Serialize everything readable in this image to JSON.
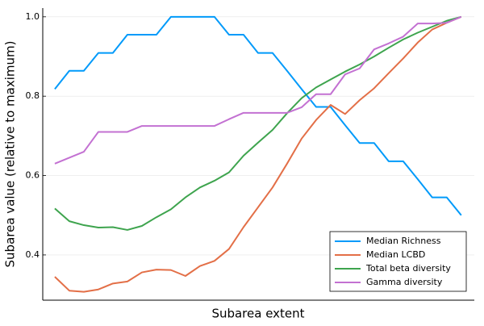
{
  "chart_data": {
    "type": "line",
    "xlabel": "Subarea extent",
    "ylabel": "Subarea value (relative to maximum)",
    "x": [
      1,
      2,
      3,
      4,
      5,
      6,
      7,
      8,
      9,
      10,
      11,
      12,
      13,
      14,
      15,
      16,
      17,
      18,
      19,
      20,
      21,
      22,
      23,
      24,
      25,
      26,
      27,
      28,
      29
    ],
    "xlim": [
      0.17,
      29.9
    ],
    "ylim": [
      0.286,
      1.022
    ],
    "yticks": [
      0.4,
      0.6,
      0.8,
      {
        "value": 1,
        "label": "1.0"
      }
    ],
    "grid": true,
    "legend": "bottom-right",
    "series": [
      {
        "name": "Median Richness",
        "color": "#009afa",
        "values": [
          0.818,
          0.864,
          0.864,
          0.909,
          0.909,
          0.955,
          0.955,
          0.955,
          1,
          1,
          1,
          1,
          0.955,
          0.955,
          0.909,
          0.909,
          0.864,
          0.818,
          0.773,
          0.773,
          0.727,
          0.682,
          0.682,
          0.636,
          0.636,
          0.591,
          0.545,
          0.545,
          0.5
        ]
      },
      {
        "name": "Median LCBD",
        "color": "#e36f47",
        "values": [
          0.345,
          0.31,
          0.307,
          0.313,
          0.328,
          0.333,
          0.356,
          0.363,
          0.362,
          0.347,
          0.372,
          0.385,
          0.415,
          0.47,
          0.52,
          0.57,
          0.63,
          0.693,
          0.74,
          0.778,
          0.755,
          0.79,
          0.82,
          0.858,
          0.895,
          0.935,
          0.968,
          0.985,
          1
        ]
      },
      {
        "name": "Total beta diversity",
        "color": "#3ea44e",
        "values": [
          0.517,
          0.485,
          0.475,
          0.469,
          0.47,
          0.463,
          0.473,
          0.495,
          0.515,
          0.545,
          0.57,
          0.587,
          0.608,
          0.65,
          0.683,
          0.715,
          0.757,
          0.795,
          0.822,
          0.842,
          0.862,
          0.88,
          0.9,
          0.922,
          0.943,
          0.96,
          0.975,
          0.99,
          1
        ]
      },
      {
        "name": "Gamma diversity",
        "color": "#c371d2",
        "values": [
          0.63,
          0.645,
          0.66,
          0.71,
          0.71,
          0.71,
          0.725,
          0.725,
          0.725,
          0.725,
          0.725,
          0.725,
          0.742,
          0.758,
          0.758,
          0.758,
          0.758,
          0.772,
          0.805,
          0.805,
          0.855,
          0.87,
          0.918,
          0.933,
          0.95,
          0.983,
          0.983,
          0.985,
          1
        ]
      }
    ]
  }
}
